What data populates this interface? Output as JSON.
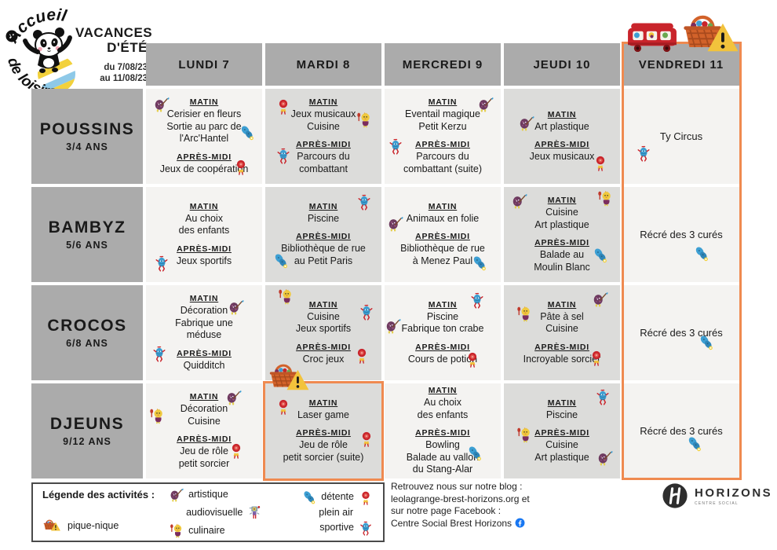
{
  "colors": {
    "accent_orange": "#ef8a50",
    "header_gray": "#ababab",
    "cell_light": "#f4f3f1",
    "cell_dark": "#dcdcda",
    "red": "#c9242b",
    "blue": "#3d9fd3",
    "yellow": "#f2c33c",
    "purple": "#6d3a5f",
    "facebook_blue": "#1877f2"
  },
  "logo": {
    "arc_top": "Accueil",
    "arc_bottom": "de loisirs"
  },
  "title": {
    "line1": "VACANCES",
    "line2": "D'ÉTÉ",
    "dates": [
      "du 7/08/23",
      "au 11/08/23"
    ]
  },
  "labels": {
    "matin": "MATIN",
    "apres_midi": "APRÈS-MIDI"
  },
  "schedule": {
    "day_headers": [
      "LUNDI 7",
      "MARDI 8",
      "MERCREDI 9",
      "JEUDI 10",
      "VENDREDI 11"
    ],
    "rows": [
      {
        "group": "POUSSINS",
        "age": "3/4 ANS",
        "cells": [
          {
            "matin": [
              "Cerisier en fleurs",
              "Sortie au parc de",
              "l'Arc'Hantel"
            ],
            "apres_midi": [
              "Jeux de coopération"
            ],
            "icons": [
              {
                "name": "artistic",
                "x": 6,
                "y": 6
              },
              {
                "name": "butterfly",
                "x": 80,
                "y": 36
              },
              {
                "name": "outdoor",
                "x": 74,
                "y": 72
              }
            ]
          },
          {
            "matin": [
              "Jeux musicaux",
              "Cuisine"
            ],
            "apres_midi": [
              "Parcours du",
              "combattant"
            ],
            "icons": [
              {
                "name": "outdoor",
                "x": 8,
                "y": 8
              },
              {
                "name": "culinary",
                "x": 78,
                "y": 22
              },
              {
                "name": "sport",
                "x": 8,
                "y": 60
              }
            ]
          },
          {
            "matin": [
              "Eventail magique",
              "Petit Kerzu"
            ],
            "apres_midi": [
              "Parcours du",
              "combattant (suite)"
            ],
            "icons": [
              {
                "name": "artistic",
                "x": 80,
                "y": 6
              },
              {
                "name": "sport",
                "x": 2,
                "y": 50
              }
            ]
          },
          {
            "matin": [
              "Art plastique"
            ],
            "apres_midi": [
              "Jeux musicaux"
            ],
            "icons": [
              {
                "name": "artistic",
                "x": 12,
                "y": 26
              },
              {
                "name": "outdoor",
                "x": 76,
                "y": 68
              }
            ]
          },
          {
            "all_day": "Ty Circus",
            "icons": [
              {
                "name": "sport",
                "x": 10,
                "y": 58
              }
            ]
          }
        ]
      },
      {
        "group": "BAMBYZ",
        "age": "5/6 ANS",
        "cells": [
          {
            "matin": [
              "Au choix",
              "des enfants"
            ],
            "apres_midi": [
              "Jeux sportifs"
            ],
            "icons": [
              {
                "name": "sport",
                "x": 6,
                "y": 70
              }
            ]
          },
          {
            "matin": [
              "Piscine"
            ],
            "apres_midi": [
              "Bibliothèque de rue",
              "au Petit Paris"
            ],
            "icons": [
              {
                "name": "sport",
                "x": 78,
                "y": 6
              },
              {
                "name": "butterfly",
                "x": 6,
                "y": 68
              }
            ]
          },
          {
            "matin": [
              "Animaux en folie"
            ],
            "apres_midi": [
              "Bibliothèque de rue",
              "à Menez Paul"
            ],
            "icons": [
              {
                "name": "artistic",
                "x": 2,
                "y": 28
              },
              {
                "name": "butterfly",
                "x": 74,
                "y": 70
              }
            ]
          },
          {
            "matin": [
              "Cuisine",
              "Art plastique"
            ],
            "apres_midi": [
              "Balade au",
              "Moulin Blanc"
            ],
            "icons": [
              {
                "name": "artistic",
                "x": 6,
                "y": 4
              },
              {
                "name": "culinary",
                "x": 80,
                "y": 2
              },
              {
                "name": "butterfly",
                "x": 76,
                "y": 62
              }
            ]
          },
          {
            "all_day": "Récré des 3 curés",
            "icons": [
              {
                "name": "butterfly",
                "x": 60,
                "y": 60
              }
            ]
          }
        ]
      },
      {
        "group": "CROCOS",
        "age": "6/8 ANS",
        "cells": [
          {
            "matin": [
              "Décoration",
              "Fabrique une",
              "méduse"
            ],
            "apres_midi": [
              "Quidditch"
            ],
            "icons": [
              {
                "name": "artistic",
                "x": 70,
                "y": 12
              },
              {
                "name": "sport",
                "x": 4,
                "y": 62
              }
            ]
          },
          {
            "matin": [
              "Cuisine",
              "Jeux sportifs"
            ],
            "apres_midi": [
              "Croc jeux"
            ],
            "icons": [
              {
                "name": "culinary",
                "x": 10,
                "y": 2
              },
              {
                "name": "sport",
                "x": 80,
                "y": 18
              },
              {
                "name": "outdoor",
                "x": 76,
                "y": 64
              }
            ]
          },
          {
            "matin": [
              "Piscine",
              "Fabrique ton crabe"
            ],
            "apres_midi": [
              "Cours de potion"
            ],
            "icons": [
              {
                "name": "sport",
                "x": 72,
                "y": 6
              },
              {
                "name": "artistic",
                "x": 0,
                "y": 32
              },
              {
                "name": "outdoor",
                "x": 68,
                "y": 68
              }
            ]
          },
          {
            "matin": [
              "Pâte à sel",
              "Cuisine"
            ],
            "apres_midi": [
              "Incroyable sorcier"
            ],
            "icons": [
              {
                "name": "artistic",
                "x": 76,
                "y": 4
              },
              {
                "name": "culinary",
                "x": 10,
                "y": 20
              },
              {
                "name": "outdoor",
                "x": 72,
                "y": 66
              }
            ]
          },
          {
            "all_day": "Récré des 3 curés",
            "icons": [
              {
                "name": "butterfly",
                "x": 64,
                "y": 50
              }
            ]
          }
        ]
      },
      {
        "group": "DJEUNS",
        "age": "9/12 ANS",
        "cells": [
          {
            "matin": [
              "Décoration",
              "Cuisine"
            ],
            "apres_midi": [
              "Jeu de rôle",
              "petit sorcier"
            ],
            "icons": [
              {
                "name": "artistic",
                "x": 68,
                "y": 4
              },
              {
                "name": "culinary",
                "x": 2,
                "y": 24
              },
              {
                "name": "outdoor",
                "x": 70,
                "y": 60
              }
            ]
          },
          {
            "matin": [
              "Laser game"
            ],
            "apres_midi": [
              "Jeu de rôle",
              "petit sorcier (suite)"
            ],
            "highlight": true,
            "icons": [
              {
                "name": "outdoor",
                "x": 8,
                "y": 14
              },
              {
                "name": "outdoor",
                "x": 80,
                "y": 48
              }
            ]
          },
          {
            "matin": [
              "Au choix",
              "des enfants"
            ],
            "apres_midi": [
              "Bowling",
              "Balade au vallon",
              "du Stang-Alar"
            ],
            "icons": [
              {
                "name": "butterfly",
                "x": 70,
                "y": 64
              }
            ]
          },
          {
            "matin": [
              "Piscine"
            ],
            "apres_midi": [
              "Cuisine",
              "Art plastique"
            ],
            "icons": [
              {
                "name": "sport",
                "x": 78,
                "y": 4
              },
              {
                "name": "culinary",
                "x": 10,
                "y": 44
              },
              {
                "name": "artistic",
                "x": 80,
                "y": 68
              }
            ]
          },
          {
            "all_day": "Récré des 3 curés",
            "icons": [
              {
                "name": "butterfly",
                "x": 54,
                "y": 54
              }
            ]
          }
        ]
      }
    ]
  },
  "legend": {
    "title": "Légende des activités :",
    "picnic_label": "pique-nique",
    "art_labels": [
      "artistique",
      "audiovisuelle",
      "culinaire"
    ],
    "nature_labels": [
      "détente",
      "plein air",
      "sportive"
    ]
  },
  "footer": {
    "blog_lines": [
      "Retrouvez nous sur notre blog :",
      "leolagrange-brest-horizons.org et",
      "sur notre page Facebook :",
      "Centre Social Brest Horizons"
    ],
    "horizons": "HORIZONS",
    "horizons_sub": "CENTRE SOCIAL"
  }
}
